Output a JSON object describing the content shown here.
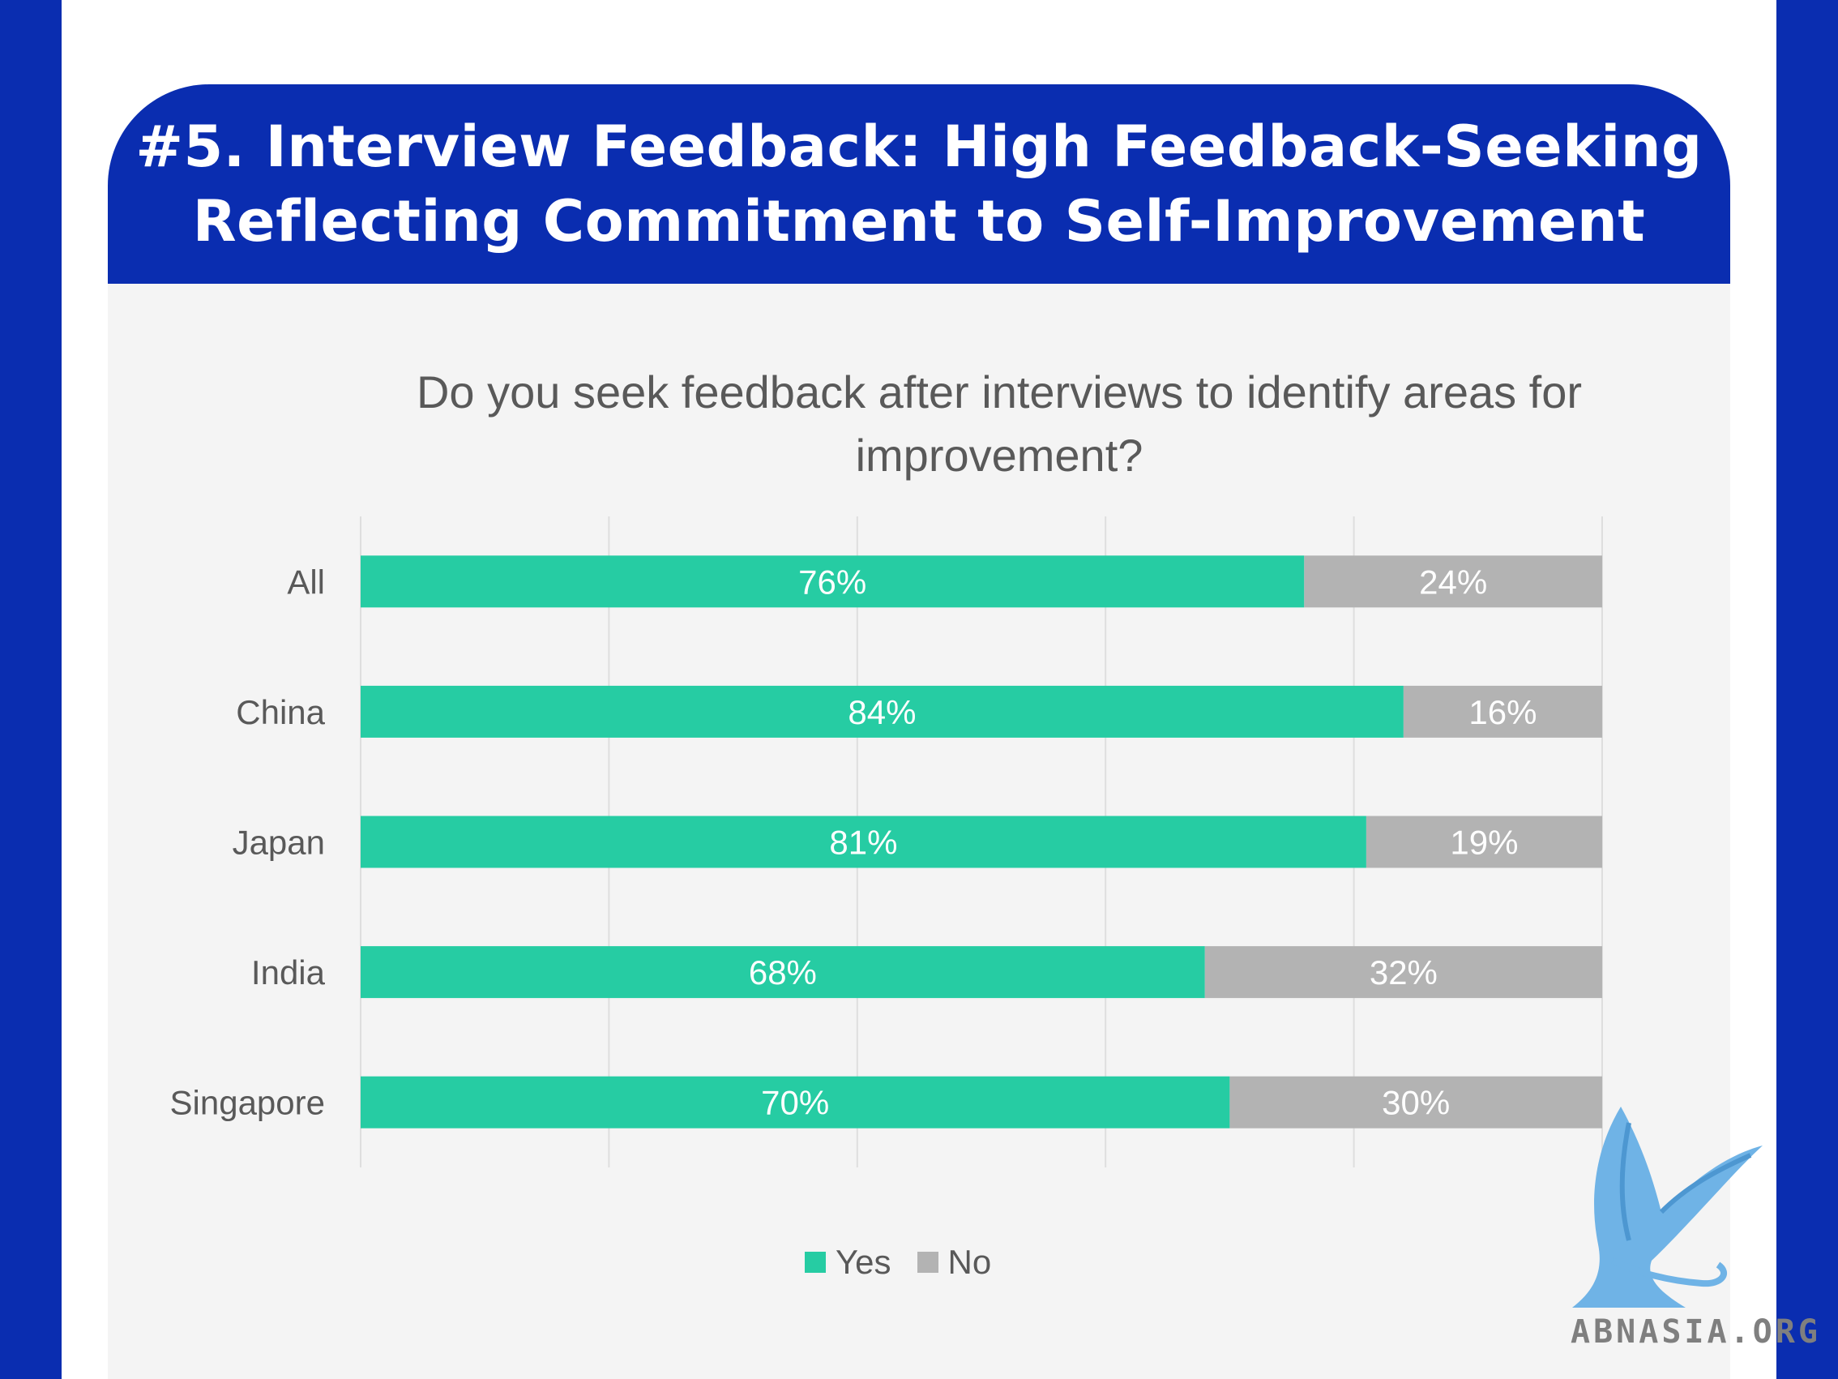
{
  "title": {
    "line1": "#5. Interview Feedback: High Feedback-Seeking",
    "line2": "Reflecting Commitment to Self-Improvement"
  },
  "colors": {
    "frame": "#0a2db0",
    "panel": "#f4f4f4",
    "yes": "#26cca3",
    "no": "#b3b3b3",
    "logo": "#6fb3e6"
  },
  "logo": {
    "icon": "griffin-logo-icon",
    "text": "ABNASIA.ORG"
  },
  "chart_data": {
    "type": "bar",
    "orientation": "horizontal",
    "stacked": true,
    "title": "Do you seek feedback after interviews to identify areas for improvement?",
    "title_lines": [
      "Do you seek feedback after interviews to identify areas for",
      "improvement?"
    ],
    "categories": [
      "All",
      "China",
      "Japan",
      "India",
      "Singapore"
    ],
    "series": [
      {
        "name": "Yes",
        "values": [
          76,
          84,
          81,
          68,
          70
        ],
        "labels": [
          "76%",
          "84%",
          "81%",
          "68%",
          "70%"
        ]
      },
      {
        "name": "No",
        "values": [
          24,
          16,
          19,
          32,
          30
        ],
        "labels": [
          "24%",
          "16%",
          "19%",
          "32%",
          "30%"
        ]
      }
    ],
    "xlim": [
      0,
      100
    ],
    "grid": true,
    "legend_position": "bottom"
  }
}
